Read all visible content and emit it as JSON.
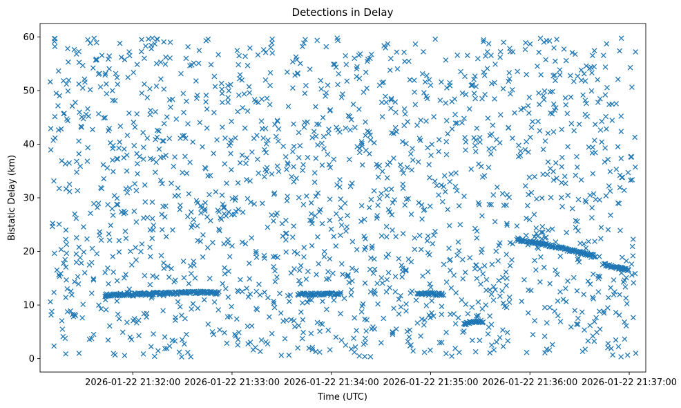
{
  "chart_data": {
    "type": "scatter",
    "title": "Detections in Delay",
    "xlabel": "Time (UTC)",
    "ylabel": "Bistatic Delay (km)",
    "marker": "x",
    "color": "#1f77b4",
    "xlim_seconds": [
      -56,
      310
    ],
    "ylim": [
      -2.5,
      62.5
    ],
    "x_origin": "2026-01-22 21:32:00",
    "x_ticks": [
      {
        "value": 0,
        "label": "2026-01-22 21:32:00"
      },
      {
        "value": 60,
        "label": "2026-01-22 21:33:00"
      },
      {
        "value": 120,
        "label": "2026-01-22 21:34:00"
      },
      {
        "value": 180,
        "label": "2026-01-22 21:35:00"
      },
      {
        "value": 240,
        "label": "2026-01-22 21:36:00"
      },
      {
        "value": 300,
        "label": "2026-01-22 21:37:00"
      }
    ],
    "y_ticks": [
      {
        "value": 0,
        "label": "0"
      },
      {
        "value": 10,
        "label": "10"
      },
      {
        "value": 20,
        "label": "20"
      },
      {
        "value": 30,
        "label": "30"
      },
      {
        "value": 40,
        "label": "40"
      },
      {
        "value": 50,
        "label": "50"
      },
      {
        "value": 60,
        "label": "60"
      }
    ],
    "x_range_data": [
      -50,
      304
    ],
    "clutter_points_estimate": 1700,
    "clutter_seed": 7,
    "tracks": [
      {
        "name": "track-1",
        "x": [
          -17,
          -10,
          0,
          10,
          20,
          30,
          40,
          52
        ],
        "y": [
          11.8,
          11.9,
          12.0,
          12.1,
          12.2,
          12.3,
          12.4,
          12.2
        ]
      },
      {
        "name": "track-2",
        "x": [
          100,
          115,
          125
        ],
        "y": [
          12.0,
          12.0,
          12.1
        ]
      },
      {
        "name": "track-3",
        "x": [
          172,
          180,
          188
        ],
        "y": [
          12.2,
          12.1,
          12.0
        ]
      },
      {
        "name": "track-4",
        "x": [
          232,
          240,
          250,
          260,
          270,
          280
        ],
        "y": [
          22.3,
          21.8,
          21.2,
          20.5,
          19.8,
          19.0
        ]
      },
      {
        "name": "track-5",
        "x": [
          285,
          292,
          300
        ],
        "y": [
          17.5,
          17.0,
          16.5
        ]
      },
      {
        "name": "track-6",
        "x": [
          200,
          206,
          212
        ],
        "y": [
          6.5,
          6.8,
          7.0
        ]
      }
    ]
  }
}
